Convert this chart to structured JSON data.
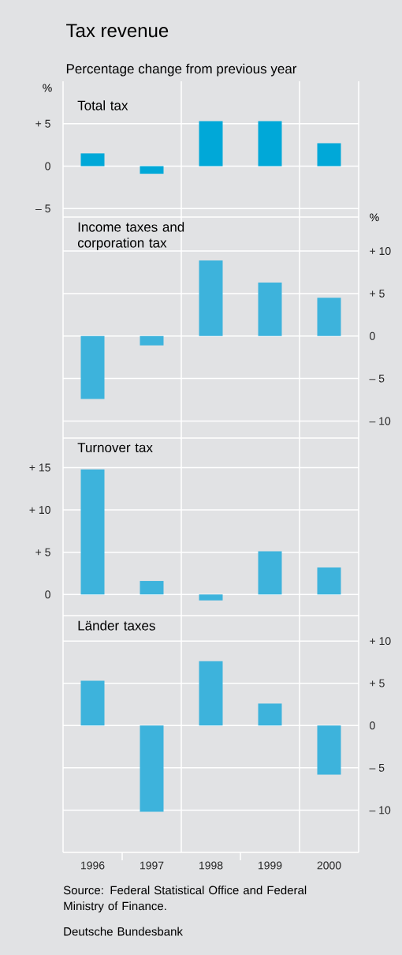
{
  "chart_data": [
    {
      "type": "bar",
      "title": "Tax revenue",
      "subtitle": "Percentage change from previous year",
      "annotations": [
        "Total tax"
      ],
      "ylabel": "%",
      "categories": [
        "1996",
        "1997",
        "1998",
        "1999",
        "2000"
      ],
      "series": [
        {
          "color": "#00a8d8",
          "values": [
            1.5,
            -0.9,
            5.3,
            5.3,
            2.7
          ]
        }
      ],
      "ylim": [
        -6,
        10
      ],
      "yticks": [
        {
          "value": -5,
          "label": "– 5"
        },
        0,
        {
          "value": 5,
          "label": "+ 5"
        }
      ],
      "grid": true,
      "tick_labels": "y"
    },
    {
      "type": "bar",
      "title": "Income taxes and corporation tax",
      "y2label": "%",
      "categories": [
        "1996",
        "1997",
        "1998",
        "1999",
        "2000"
      ],
      "series": [
        {
          "color": "#3db3dc",
          "values": [
            -7.4,
            -1.1,
            8.9,
            6.3,
            4.5
          ],
          "axis": "y2"
        }
      ],
      "y2lim": [
        -12,
        14
      ],
      "y2ticks": [
        {
          "value": -10,
          "label": "– 10"
        },
        {
          "value": -5,
          "label": "– 5"
        },
        0,
        {
          "value": 5,
          "label": "+ 5"
        },
        {
          "value": 10,
          "label": "+ 10"
        }
      ],
      "grid": true,
      "tick_labels": "y"
    },
    {
      "type": "bar",
      "title": "Turnover tax",
      "categories": [
        "1996",
        "1997",
        "1998",
        "1999",
        "2000"
      ],
      "series": [
        {
          "color": "#3db3dc",
          "values": [
            14.8,
            1.6,
            -0.7,
            5.1,
            3.2
          ]
        }
      ],
      "ylim": [
        -2.5,
        18.5
      ],
      "yticks": [
        0,
        {
          "value": 5,
          "label": "+   5"
        },
        {
          "value": 10,
          "label": "+ 10"
        },
        {
          "value": 15,
          "label": "+ 15"
        }
      ],
      "grid": true,
      "tick_labels": "y"
    },
    {
      "type": "bar",
      "title": "Länder taxes",
      "categories": [
        "1996",
        "1997",
        "1998",
        "1999",
        "2000"
      ],
      "series": [
        {
          "color": "#3db3dc",
          "values": [
            5.3,
            -10.2,
            7.6,
            2.6,
            -5.8
          ],
          "axis": "y2"
        }
      ],
      "y2lim": [
        -15,
        13
      ],
      "y2ticks": [
        {
          "value": -10,
          "label": "– 10"
        },
        {
          "value": -5,
          "label": "– 5"
        },
        0,
        {
          "value": 5,
          "label": "+ 5"
        },
        {
          "value": 10,
          "label": "+ 10"
        }
      ],
      "grid": true,
      "annotations": [
        "Source: Federal Statistical Office and Federal Ministry of Finance.",
        "Deutsche Bundesbank"
      ]
    }
  ]
}
